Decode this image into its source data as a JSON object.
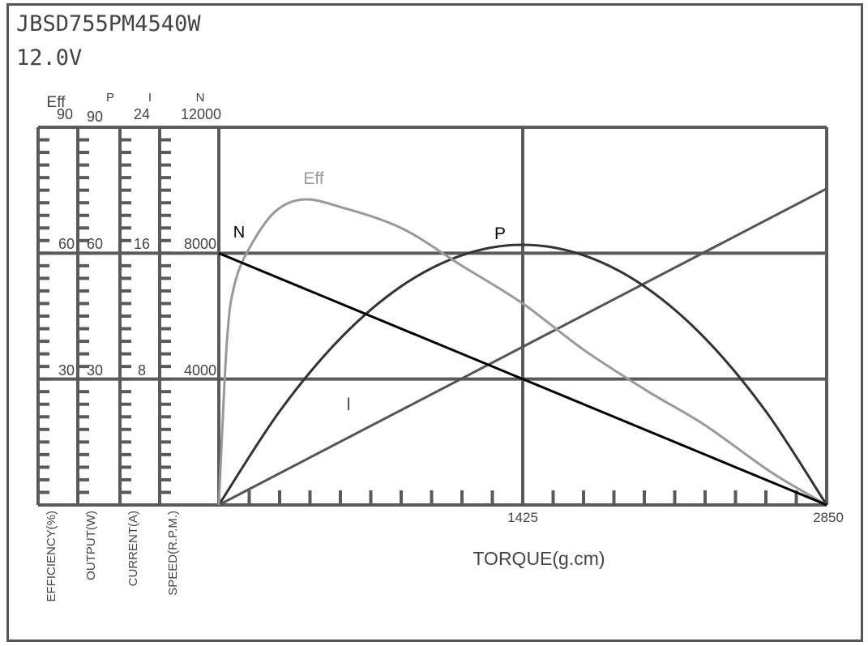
{
  "header": {
    "model": "JBSD755PM4540W",
    "voltage": "12.0V"
  },
  "chart_data": {
    "type": "line",
    "title": "JBSD755PM4540W 12.0V",
    "xlabel": "TORQUE(g.cm)",
    "xlim": [
      0,
      2850
    ],
    "x_tick_labels": [
      "1425",
      "2850"
    ],
    "grid": true,
    "y_axes": [
      {
        "symbol": "Eff",
        "label": "EFFICIENCY(%)",
        "range": [
          0,
          90
        ],
        "tick_labels": [
          "90",
          "60",
          "30"
        ]
      },
      {
        "symbol": "P",
        "label": "OUTPUT(W)",
        "range": [
          0,
          90
        ],
        "tick_labels": [
          "90",
          "60",
          "30"
        ]
      },
      {
        "symbol": "I",
        "label": "CURRENT(A)",
        "range": [
          0,
          24
        ],
        "tick_labels": [
          "24",
          "16",
          "8"
        ]
      },
      {
        "symbol": "N",
        "label": "SPEED(R.P.M.)",
        "range": [
          0,
          12000
        ],
        "tick_labels": [
          "12000",
          "8000",
          "4000"
        ]
      }
    ],
    "series": [
      {
        "name": "N",
        "axis": 3,
        "color": "#000000",
        "x": [
          0,
          2850
        ],
        "y": [
          8000,
          0
        ]
      },
      {
        "name": "I",
        "axis": 2,
        "color": "#555555",
        "x": [
          0,
          2850
        ],
        "y": [
          0,
          20.1
        ]
      },
      {
        "name": "P",
        "axis": 1,
        "color": "#333333",
        "x": [
          0,
          285,
          570,
          855,
          1140,
          1425,
          1710,
          1995,
          2280,
          2565,
          2850
        ],
        "y": [
          0,
          22.3,
          39.7,
          52.1,
          59.5,
          62,
          59.5,
          52.1,
          39.7,
          22.3,
          0
        ]
      },
      {
        "name": "Eff",
        "axis": 0,
        "color": "#999999",
        "x": [
          0,
          38,
          76,
          152,
          266,
          399,
          570,
          855,
          1140,
          1425,
          1710,
          2014,
          2280,
          2584,
          2850
        ],
        "y": [
          0,
          39,
          53,
          62,
          70,
          72.8,
          71,
          66,
          57,
          48,
          37,
          27,
          19,
          8,
          0
        ]
      }
    ]
  }
}
